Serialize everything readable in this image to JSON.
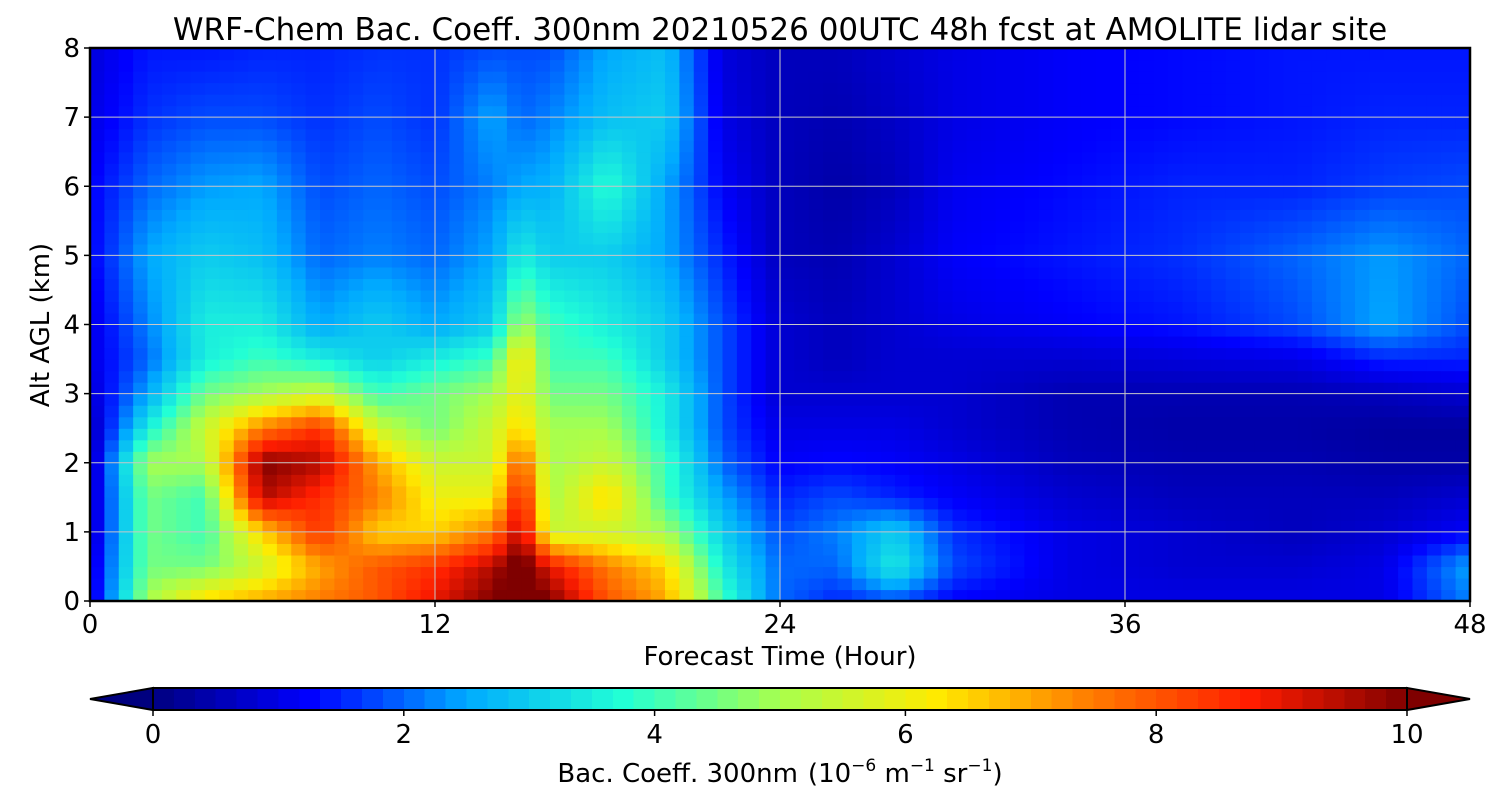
{
  "chart_data": {
    "type": "heatmap",
    "title": "WRF-Chem Bac. Coeff. 300nm  20210526 00UTC 48h fcst at AMOLITE lidar site",
    "xlabel": "Forecast Time (Hour)",
    "ylabel": "Alt AGL (km)",
    "xlim": [
      0,
      48
    ],
    "ylim": [
      0,
      8
    ],
    "x_ticks": [
      0,
      12,
      24,
      36,
      48
    ],
    "x_tick_labels": [
      "0",
      "12",
      "24",
      "36",
      "48"
    ],
    "y_ticks": [
      0,
      1,
      2,
      3,
      4,
      5,
      6,
      7,
      8
    ],
    "y_tick_labels": [
      "0",
      "1",
      "2",
      "3",
      "4",
      "5",
      "6",
      "7",
      "8"
    ],
    "grid": true,
    "colormap": "jet",
    "colorbar": {
      "label_main": "Bac. Coeff. 300nm",
      "label_unit_parts": [
        "(10",
        "−6",
        " m",
        "−1",
        " sr",
        "−1",
        ")"
      ],
      "range": [
        0,
        10
      ],
      "ticks": [
        0,
        2,
        4,
        6,
        8,
        10
      ],
      "tick_labels": [
        "0",
        "2",
        "4",
        "6",
        "8",
        "10"
      ],
      "extend": "both",
      "colors": [
        "#00007f",
        "#0000ff",
        "#00aaff",
        "#22ffd5",
        "#a8ff4d",
        "#ffea00",
        "#ff7a00",
        "#ff1d00",
        "#7f0000"
      ]
    },
    "x": [
      0,
      2,
      4,
      6,
      8,
      10,
      12,
      14,
      15,
      16,
      18,
      20,
      22,
      24,
      26,
      28,
      30,
      34,
      38,
      42,
      45,
      48
    ],
    "y": [
      0,
      0.5,
      1,
      1.5,
      2,
      2.5,
      3,
      3.5,
      4,
      5,
      6,
      7,
      8
    ],
    "z": [
      [
        0.8,
        5.0,
        6.5,
        7.0,
        7.5,
        8.0,
        9.0,
        10.0,
        10.5,
        10.0,
        8.0,
        7.0,
        4.0,
        2.0,
        1.5,
        1.8,
        1.2,
        1.0,
        1.0,
        1.0,
        1.0,
        2.2
      ],
      [
        0.8,
        4.5,
        4.5,
        5.5,
        7.0,
        8.0,
        8.5,
        9.5,
        10.5,
        9.0,
        7.5,
        6.5,
        3.5,
        2.0,
        2.0,
        3.5,
        1.8,
        1.0,
        0.8,
        0.8,
        1.0,
        2.5
      ],
      [
        0.6,
        4.5,
        4.0,
        6.5,
        8.5,
        6.5,
        6.5,
        7.5,
        9.5,
        5.5,
        5.5,
        5.0,
        3.0,
        1.8,
        2.2,
        3.0,
        1.6,
        1.0,
        0.8,
        0.6,
        0.8,
        1.2
      ],
      [
        0.6,
        4.5,
        4.0,
        9.5,
        8.5,
        7.5,
        6.0,
        6.0,
        9.0,
        5.0,
        6.5,
        4.0,
        2.5,
        1.5,
        1.8,
        1.5,
        1.2,
        0.8,
        0.6,
        0.6,
        0.6,
        0.8
      ],
      [
        0.5,
        5.0,
        5.0,
        10.0,
        9.5,
        7.0,
        5.5,
        5.5,
        8.0,
        5.0,
        5.5,
        4.0,
        2.0,
        1.2,
        1.3,
        1.2,
        1.0,
        0.6,
        0.5,
        0.5,
        0.4,
        0.4
      ],
      [
        0.5,
        3.5,
        5.5,
        7.5,
        8.5,
        5.5,
        4.5,
        5.5,
        6.5,
        5.0,
        5.0,
        3.5,
        1.8,
        1.0,
        1.0,
        1.0,
        0.8,
        0.5,
        0.4,
        0.4,
        0.3,
        0.3
      ],
      [
        0.8,
        2.5,
        4.5,
        5.0,
        5.5,
        4.0,
        4.5,
        5.0,
        6.0,
        4.5,
        4.5,
        3.5,
        1.8,
        0.8,
        0.8,
        0.8,
        0.8,
        0.5,
        0.5,
        0.5,
        0.6,
        0.8
      ],
      [
        1.0,
        2.0,
        3.5,
        4.0,
        3.5,
        3.0,
        3.5,
        4.0,
        6.5,
        4.0,
        4.0,
        3.0,
        1.8,
        0.8,
        0.6,
        0.8,
        0.8,
        0.8,
        0.9,
        1.0,
        1.5,
        1.5
      ],
      [
        1.0,
        2.2,
        3.5,
        3.5,
        2.5,
        3.0,
        2.5,
        3.0,
        5.0,
        4.0,
        3.5,
        3.0,
        1.8,
        0.8,
        0.6,
        0.8,
        1.0,
        1.2,
        1.4,
        1.8,
        2.5,
        1.8
      ],
      [
        1.2,
        2.5,
        3.0,
        2.8,
        2.0,
        2.2,
        2.0,
        2.5,
        3.5,
        3.0,
        3.0,
        2.5,
        1.5,
        0.6,
        0.5,
        0.8,
        1.2,
        1.4,
        1.6,
        2.0,
        2.4,
        2.0
      ],
      [
        1.2,
        2.0,
        2.4,
        2.5,
        1.8,
        2.0,
        1.8,
        2.2,
        2.5,
        2.6,
        3.8,
        2.5,
        1.2,
        0.6,
        0.4,
        0.6,
        1.1,
        1.3,
        1.5,
        1.5,
        1.7,
        1.8
      ],
      [
        1.0,
        1.6,
        1.8,
        1.8,
        1.6,
        1.8,
        1.6,
        2.5,
        2.0,
        2.2,
        2.8,
        3.0,
        1.0,
        0.6,
        0.5,
        0.7,
        1.0,
        1.2,
        1.3,
        1.4,
        1.5,
        1.5
      ],
      [
        0.9,
        1.4,
        1.4,
        1.5,
        1.5,
        1.6,
        1.6,
        1.8,
        1.8,
        1.8,
        2.5,
        2.8,
        0.9,
        0.6,
        0.6,
        0.8,
        1.0,
        1.2,
        1.3,
        1.4,
        1.4,
        1.4
      ]
    ]
  }
}
